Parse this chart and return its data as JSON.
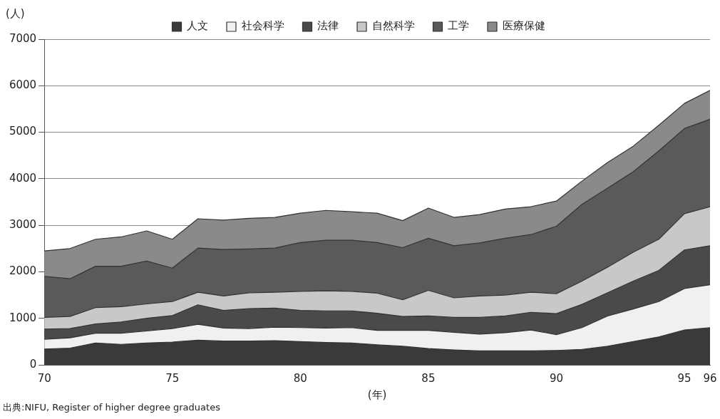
{
  "chart_data": {
    "type": "area",
    "stacked": true,
    "ylabel": "(人)",
    "xlabel": "(年)",
    "annotations": [
      "出典:NIFU, Register of higher degree graduates"
    ],
    "x": [
      70,
      71,
      72,
      73,
      74,
      75,
      76,
      77,
      78,
      79,
      80,
      81,
      82,
      83,
      84,
      85,
      86,
      87,
      88,
      89,
      90,
      91,
      92,
      93,
      94,
      95,
      96
    ],
    "xlim": [
      70,
      96
    ],
    "xticks": [
      70,
      75,
      80,
      85,
      90,
      95,
      96
    ],
    "ylim": [
      0,
      7000
    ],
    "yticks": [
      0,
      1000,
      2000,
      3000,
      4000,
      5000,
      6000,
      7000
    ],
    "grid": "y",
    "legend": "top",
    "series": [
      {
        "name": "人文",
        "color": "#3a3a3a",
        "values": [
          340,
          360,
          470,
          440,
          470,
          490,
          530,
          510,
          510,
          520,
          500,
          480,
          470,
          430,
          400,
          350,
          320,
          300,
          300,
          300,
          310,
          330,
          400,
          500,
          600,
          750,
          800
        ]
      },
      {
        "name": "社会科学",
        "color": "#f0f0f0",
        "values": [
          210,
          220,
          210,
          240,
          260,
          290,
          340,
          280,
          270,
          290,
          300,
          310,
          330,
          310,
          340,
          390,
          380,
          360,
          390,
          450,
          340,
          470,
          650,
          700,
          760,
          890,
          920
        ]
      },
      {
        "name": "法律",
        "color": "#4a4a4a",
        "values": [
          220,
          200,
          200,
          240,
          270,
          280,
          420,
          380,
          430,
          410,
          370,
          370,
          360,
          370,
          300,
          310,
          320,
          360,
          360,
          380,
          450,
          500,
          500,
          600,
          670,
          830,
          840
        ]
      },
      {
        "name": "自然科学",
        "color": "#c8c8c8",
        "values": [
          250,
          260,
          350,
          330,
          310,
          300,
          270,
          310,
          340,
          340,
          410,
          430,
          420,
          430,
          360,
          550,
          420,
          460,
          450,
          430,
          430,
          500,
          550,
          620,
          670,
          780,
          840
        ]
      },
      {
        "name": "工学",
        "color": "#5a5a5a",
        "values": [
          880,
          810,
          890,
          870,
          920,
          720,
          950,
          1000,
          940,
          950,
          1050,
          1090,
          1100,
          1090,
          1120,
          1120,
          1120,
          1140,
          1220,
          1240,
          1450,
          1650,
          1700,
          1730,
          1900,
          1830,
          1880
        ]
      },
      {
        "name": "医療保健",
        "color": "#8a8a8a",
        "values": [
          550,
          650,
          580,
          630,
          650,
          620,
          630,
          630,
          660,
          660,
          630,
          640,
          610,
          630,
          580,
          650,
          610,
          610,
          630,
          600,
          540,
          500,
          550,
          550,
          550,
          540,
          620
        ]
      }
    ]
  }
}
